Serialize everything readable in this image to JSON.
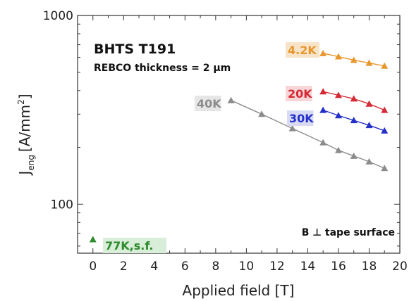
{
  "chart_data": {
    "type": "line",
    "title": "BHTS T191",
    "subtitle": "REBCO thickness = 2 μm",
    "xlabel": "Applied field [T]",
    "ylabel_main": "J",
    "ylabel_sub": "eng",
    "ylabel_unit": "[A/mm",
    "ylabel_sup": "2",
    "ylabel_close": "]",
    "yscale": "log",
    "xlim": [
      -1,
      20
    ],
    "ylim": [
      55,
      1000
    ],
    "xticks": [
      0,
      2,
      4,
      6,
      8,
      10,
      12,
      14,
      16,
      18,
      20
    ],
    "ytick_labels": [
      {
        "value": 100,
        "label": "100"
      },
      {
        "value": 1000,
        "label": "1000"
      }
    ],
    "annotation": "B ⊥ tape surface",
    "series": [
      {
        "name": "4.2K",
        "color": "#E8962E",
        "label_bg": "#F7E3C8",
        "x": [
          15,
          16,
          17,
          18,
          19
        ],
        "y": [
          630,
          605,
          580,
          560,
          540
        ]
      },
      {
        "name": "20K",
        "color": "#D42A35",
        "label_bg": "#F7D6D8",
        "x": [
          15,
          16,
          17,
          18,
          19
        ],
        "y": [
          395,
          378,
          362,
          340,
          315
        ]
      },
      {
        "name": "30K",
        "color": "#2430C8",
        "label_bg": "#D9DBF5",
        "x": [
          15,
          16,
          17,
          18,
          19
        ],
        "y": [
          315,
          295,
          278,
          262,
          245
        ]
      },
      {
        "name": "40K",
        "color": "#8C8C8C",
        "label_bg": "#E6E6E6",
        "x": [
          9,
          11,
          13,
          15,
          16,
          17,
          18,
          19
        ],
        "y": [
          355,
          300,
          252,
          212,
          193,
          180,
          168,
          155
        ]
      },
      {
        "name": "77K,s.f.",
        "color": "#2E8B2E",
        "label_bg": "#D8EED8",
        "x": [
          0
        ],
        "y": [
          65
        ]
      }
    ]
  }
}
